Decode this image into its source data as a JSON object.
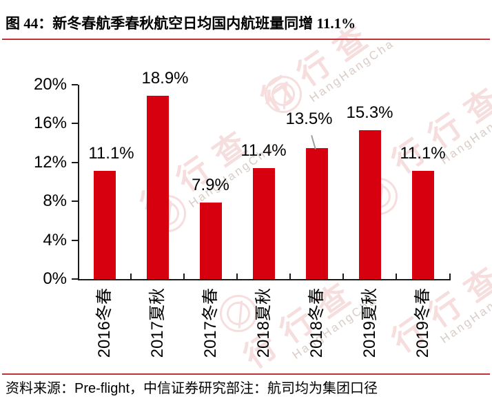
{
  "title": "图 44：新冬春航季春秋航空日均国内航班量同增 11.1%",
  "source_note": "资料来源：Pre-flight，中信证券研究部注：航司均为集团口径",
  "colors": {
    "bar": "#d7000e",
    "rule": "#bf3338",
    "axis": "#1a1a1a",
    "text": "#000000",
    "leader_line": "#9e9e9e",
    "watermark_pink": "#f6dede",
    "watermark_gray": "#d9ccc6"
  },
  "watermark": {
    "cjk_text": "行行查",
    "latin_text": "HangHangCha"
  },
  "chart_data": {
    "type": "bar",
    "title": "新冬春航季春秋航空日均国内航班量同增 11.1%",
    "categories": [
      "2016冬春",
      "2017夏秋",
      "2017冬春",
      "2018夏秋",
      "2018冬春",
      "2019夏秋",
      "2019冬春"
    ],
    "values": [
      11.1,
      18.9,
      7.9,
      11.4,
      13.5,
      15.3,
      11.1
    ],
    "value_labels": [
      "11.1%",
      "18.9%",
      "7.9%",
      "11.4%",
      "13.5%",
      "15.3%",
      "11.1%"
    ],
    "ytick_labels": [
      "0%",
      "4%",
      "8%",
      "12%",
      "16%",
      "20%"
    ],
    "ytick_values": [
      0,
      4,
      8,
      12,
      16,
      20
    ],
    "ylim": [
      0,
      20
    ],
    "grid": false,
    "legend": null,
    "callout_index": 4
  }
}
